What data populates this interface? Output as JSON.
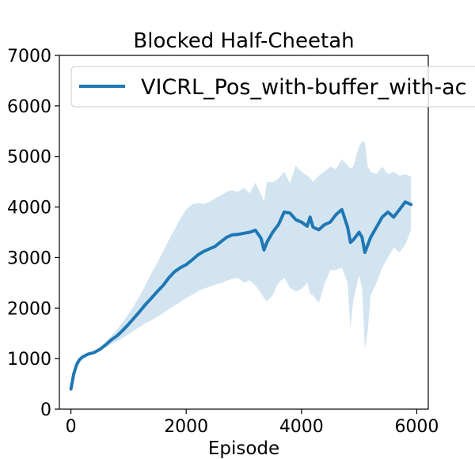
{
  "chart_data": {
    "type": "line",
    "title": "Blocked Half-Cheetah",
    "xlabel": "Episode",
    "ylabel": "",
    "xlim": [
      -200,
      6200
    ],
    "ylim": [
      0,
      7000
    ],
    "xticks": [
      0,
      2000,
      4000,
      6000
    ],
    "yticks": [
      0,
      1000,
      2000,
      3000,
      4000,
      5000,
      6000,
      7000
    ],
    "grid": false,
    "legend_position": "top-right",
    "series_color": "#1f77b4",
    "band_color": "#1f77b4",
    "band_opacity": 0.2,
    "series": [
      {
        "name": "VICRL_Pos_with-buffer_with-ac",
        "x": [
          0,
          50,
          100,
          150,
          200,
          300,
          400,
          500,
          600,
          700,
          800,
          900,
          1000,
          1100,
          1200,
          1300,
          1400,
          1500,
          1600,
          1700,
          1800,
          1900,
          2000,
          2100,
          2200,
          2300,
          2400,
          2500,
          2600,
          2700,
          2800,
          2900,
          3000,
          3100,
          3200,
          3300,
          3350,
          3400,
          3500,
          3600,
          3700,
          3800,
          3900,
          4000,
          4100,
          4150,
          4200,
          4300,
          4400,
          4500,
          4600,
          4700,
          4800,
          4850,
          4900,
          5000,
          5050,
          5100,
          5150,
          5200,
          5300,
          5400,
          5500,
          5600,
          5700,
          5800,
          5900
        ],
        "y": [
          400,
          700,
          880,
          980,
          1030,
          1090,
          1120,
          1180,
          1270,
          1370,
          1450,
          1560,
          1680,
          1810,
          1940,
          2080,
          2200,
          2330,
          2450,
          2600,
          2720,
          2800,
          2860,
          2950,
          3050,
          3120,
          3170,
          3220,
          3310,
          3400,
          3450,
          3460,
          3480,
          3500,
          3540,
          3380,
          3150,
          3300,
          3500,
          3650,
          3900,
          3880,
          3750,
          3700,
          3620,
          3800,
          3600,
          3550,
          3650,
          3700,
          3850,
          3950,
          3600,
          3300,
          3350,
          3500,
          3400,
          3100,
          3250,
          3400,
          3600,
          3800,
          3900,
          3800,
          3950,
          4100,
          4050
        ],
        "upper": [
          400,
          700,
          880,
          980,
          1030,
          1090,
          1130,
          1210,
          1320,
          1450,
          1570,
          1720,
          1880,
          2060,
          2250,
          2470,
          2700,
          2900,
          3120,
          3350,
          3560,
          3770,
          3950,
          4050,
          4080,
          4060,
          4100,
          4170,
          4230,
          4300,
          4330,
          4300,
          4380,
          4270,
          4480,
          4250,
          4100,
          4500,
          4490,
          4560,
          4700,
          4470,
          4820,
          4700,
          4620,
          4580,
          4500,
          4620,
          4700,
          4800,
          4750,
          4950,
          4820,
          4760,
          4800,
          5200,
          5300,
          5280,
          4800,
          4700,
          4650,
          4800,
          4650,
          4700,
          4620,
          4650,
          4600
        ],
        "lower": [
          400,
          700,
          880,
          980,
          1030,
          1090,
          1110,
          1150,
          1220,
          1290,
          1340,
          1410,
          1480,
          1560,
          1630,
          1700,
          1760,
          1830,
          1900,
          1980,
          2050,
          2120,
          2200,
          2260,
          2330,
          2380,
          2420,
          2460,
          2490,
          2540,
          2580,
          2600,
          2500,
          2550,
          2450,
          2300,
          2200,
          2130,
          2250,
          2500,
          2600,
          2400,
          2330,
          2380,
          2500,
          2280,
          2250,
          2100,
          2480,
          2750,
          2750,
          2800,
          2500,
          1600,
          2150,
          2650,
          2400,
          1200,
          1550,
          2250,
          2500,
          2800,
          3000,
          3200,
          3100,
          3250,
          3550
        ]
      }
    ]
  }
}
